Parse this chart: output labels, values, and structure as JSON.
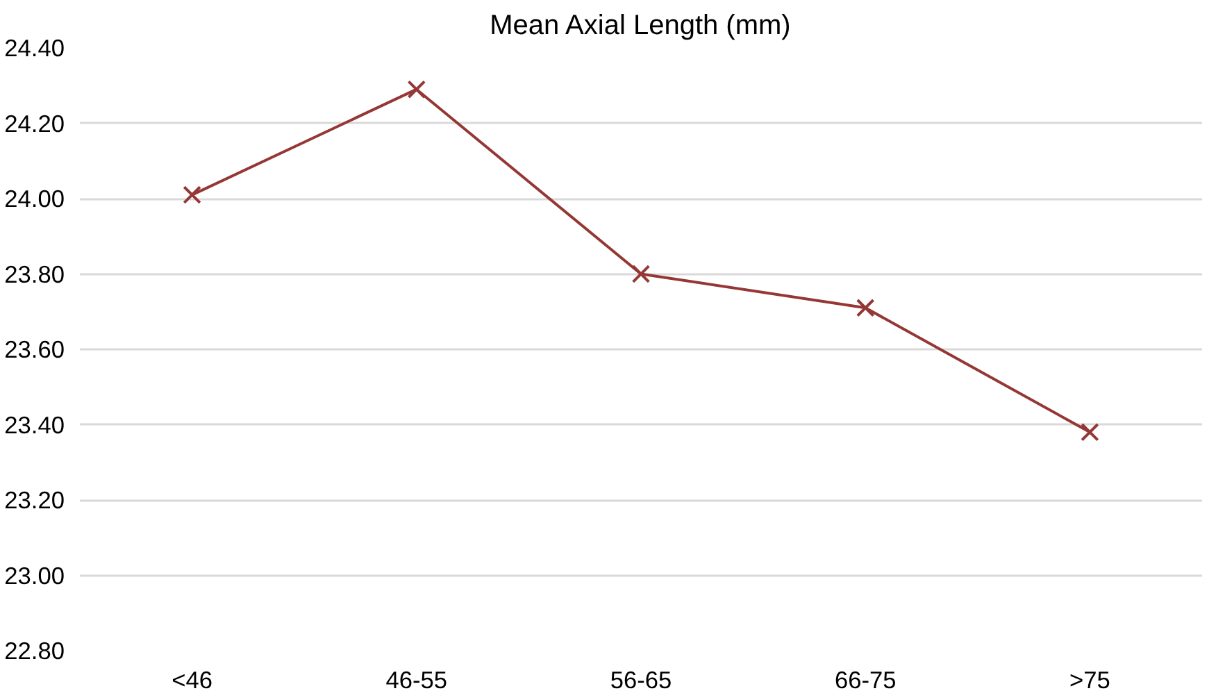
{
  "chart_data": {
    "type": "line",
    "title": "Mean Axial Length (mm)",
    "categories": [
      "<46",
      "46-55",
      "56-65",
      "66-75",
      ">75"
    ],
    "series": [
      {
        "color": "#953735",
        "values": [
          24.01,
          24.29,
          23.8,
          23.71,
          23.38
        ]
      }
    ],
    "ylim": [
      22.8,
      24.4
    ],
    "yticks": [
      {
        "value": 22.8,
        "label": "22.80"
      },
      {
        "value": 23.0,
        "label": "23.00"
      },
      {
        "value": 23.2,
        "label": "23.20"
      },
      {
        "value": 23.4,
        "label": "23.40"
      },
      {
        "value": 23.6,
        "label": "23.60"
      },
      {
        "value": 23.8,
        "label": "23.80"
      },
      {
        "value": 24.0,
        "label": "24.00"
      },
      {
        "value": 24.2,
        "label": "24.20"
      },
      {
        "value": 24.4,
        "label": "24.40"
      }
    ],
    "grid": "y",
    "marker": "cross",
    "line_style": "solid"
  }
}
